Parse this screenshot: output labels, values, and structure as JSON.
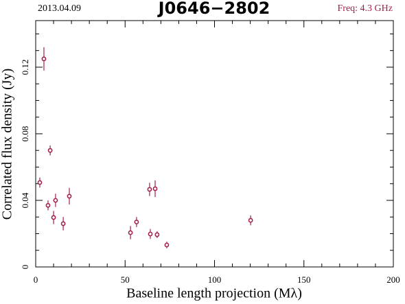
{
  "chart_data": {
    "type": "scatter",
    "title": "J0646−2802",
    "date": "2013.04.09",
    "subtitle": "Freq: 4.3 GHz",
    "xlabel": "Baseline length projection (Mλ)",
    "ylabel": "Correlated flux density (Jy)",
    "color": "#a0204a",
    "x": [
      4.6,
      2.3,
      8.1,
      6.9,
      11.1,
      10.0,
      15.4,
      18.8,
      53.0,
      56.4,
      63.7,
      66.8,
      64.1,
      67.9,
      73.3,
      120.2
    ],
    "values": [
      0.125,
      0.0507,
      0.07,
      0.037,
      0.04,
      0.0297,
      0.026,
      0.0425,
      0.0206,
      0.027,
      0.0466,
      0.047,
      0.0198,
      0.0194,
      0.0132,
      0.028
    ],
    "errors": [
      0.007,
      0.003,
      0.003,
      0.003,
      0.004,
      0.004,
      0.004,
      0.005,
      0.004,
      0.003,
      0.004,
      0.005,
      0.003,
      0.002,
      0.002,
      0.003
    ],
    "xlim": [
      0,
      200
    ],
    "ylim": [
      0,
      0.148
    ],
    "xticks": [
      0,
      50,
      100,
      150,
      200
    ],
    "yticks": [
      0,
      0.04,
      0.08,
      0.12
    ],
    "xminorticks": [
      10,
      20,
      30,
      40,
      60,
      70,
      80,
      90,
      110,
      120,
      130,
      140,
      160,
      170,
      180,
      190
    ],
    "yminorticks": [
      0.01,
      0.02,
      0.03,
      0.05,
      0.06,
      0.07,
      0.09,
      0.1,
      0.11,
      0.13,
      0.14
    ]
  }
}
